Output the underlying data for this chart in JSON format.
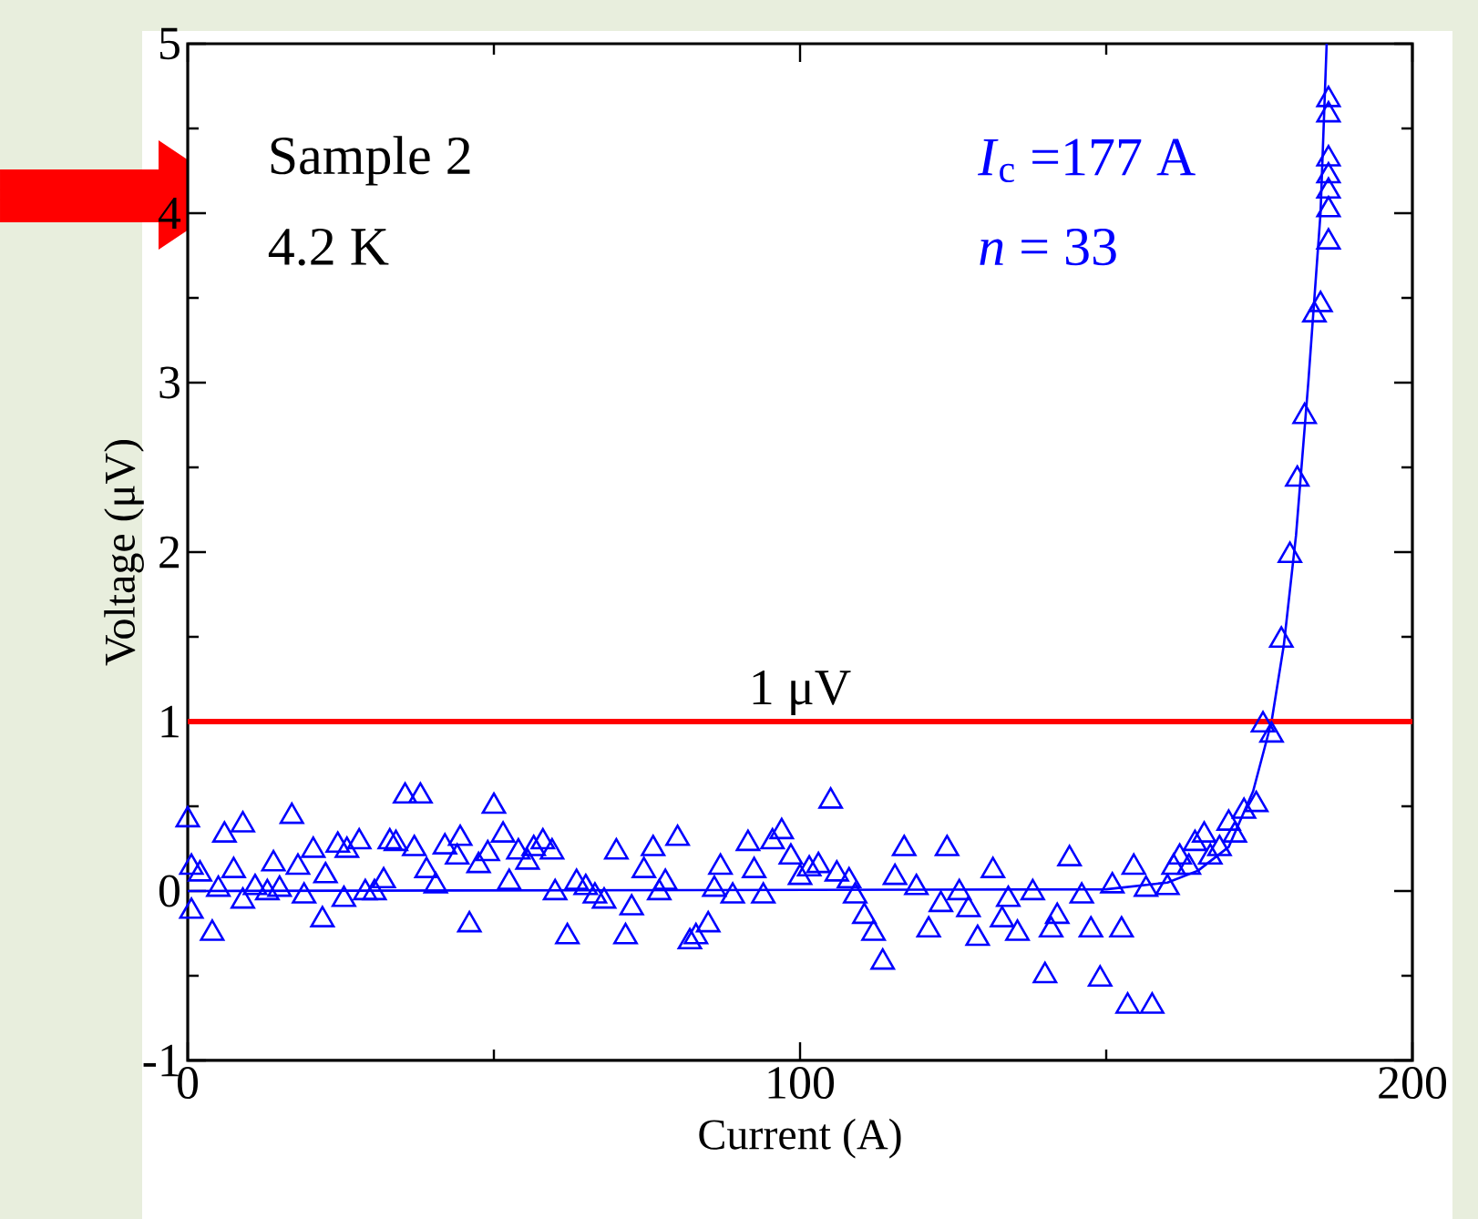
{
  "chart_data": {
    "type": "scatter",
    "xlabel": "Current (A)",
    "ylabel": "Voltage (μV)",
    "xlim": [
      0,
      200
    ],
    "ylim": [
      -1,
      5
    ],
    "xticks": [
      0,
      100,
      200
    ],
    "yticks": [
      -1,
      0,
      1,
      2,
      3,
      4,
      5
    ],
    "grid": false,
    "annotations": [
      "Sample 2",
      "4.2 K",
      "*I*$_{c}$ =177 A",
      "*n* = 33"
    ],
    "ref_lines": [
      {
        "axis": "y",
        "value": 1,
        "label": "1 μV",
        "color": "#ff0000",
        "line_style": "solid"
      }
    ],
    "series": [
      {
        "marker": "triangle",
        "color": "#0000ff",
        "x": [
          0,
          0.6,
          0.6,
          2,
          4,
          5,
          6,
          7.5,
          9,
          9,
          11,
          13,
          14,
          15,
          17,
          18,
          19,
          20.5,
          22,
          22.5,
          24.5,
          26,
          25.5,
          28,
          29,
          30.5,
          32,
          33,
          34,
          35.5,
          38,
          37,
          39,
          40.5,
          42,
          44,
          44.5,
          46,
          47.5,
          50,
          49,
          51.5,
          52.5,
          54,
          55.5,
          56.5,
          58,
          59.5,
          60,
          62,
          63.5,
          65,
          66.5,
          68,
          70,
          71.5,
          72.5,
          74.5,
          76,
          77,
          78,
          80,
          82,
          83,
          85,
          86,
          87,
          89,
          91.5,
          92.5,
          94,
          95.5,
          97,
          98.5,
          100,
          101.5,
          103,
          105,
          106,
          108,
          109,
          110.5,
          112,
          113.5,
          115.5,
          117,
          119,
          121,
          123,
          124,
          126,
          127.5,
          129,
          131.5,
          133,
          134,
          135.5,
          138,
          140,
          141,
          142,
          144,
          146,
          147.5,
          149,
          151,
          152.5,
          153.5,
          157.5,
          154.5,
          156.5,
          160,
          161,
          162,
          163.5,
          164.5,
          166,
          167,
          168.5,
          170,
          171,
          172.5,
          174.5,
          175.6,
          177,
          178.6,
          180,
          181.2,
          182.4,
          184,
          185,
          186.3,
          186.3,
          186.3,
          186.3,
          186.3,
          186.3,
          186.3
        ],
        "values": [
          0.42,
          0.14,
          -0.12,
          0.1,
          -0.25,
          0.01,
          0.33,
          0.12,
          0.39,
          -0.06,
          0.02,
          -0.01,
          0.16,
          0.01,
          0.44,
          0.14,
          -0.03,
          0.24,
          -0.17,
          0.09,
          0.27,
          0.24,
          -0.05,
          0.29,
          -0.01,
          -0.01,
          0.06,
          0.29,
          0.28,
          0.56,
          0.56,
          0.25,
          0.12,
          0.03,
          0.26,
          0.2,
          0.31,
          -0.2,
          0.15,
          0.5,
          0.22,
          0.33,
          0.05,
          0.23,
          0.17,
          0.25,
          0.29,
          0.23,
          -0.01,
          -0.27,
          0.05,
          0.02,
          -0.03,
          -0.06,
          0.23,
          -0.27,
          -0.1,
          0.12,
          0.25,
          -0.01,
          0.05,
          0.31,
          -0.3,
          -0.27,
          -0.2,
          0.01,
          0.14,
          -0.03,
          0.28,
          0.12,
          -0.03,
          0.29,
          0.35,
          0.2,
          0.08,
          0.13,
          0.15,
          0.53,
          0.1,
          0.06,
          -0.03,
          -0.15,
          -0.25,
          -0.42,
          0.08,
          0.25,
          0.02,
          -0.23,
          -0.08,
          0.25,
          -0.01,
          -0.11,
          -0.28,
          0.12,
          -0.17,
          -0.05,
          -0.25,
          -0.01,
          -0.5,
          -0.23,
          -0.15,
          0.19,
          -0.03,
          -0.23,
          -0.52,
          0.03,
          -0.23,
          -0.68,
          -0.68,
          0.14,
          0.01,
          0.02,
          0.14,
          0.2,
          0.14,
          0.28,
          0.33,
          0.2,
          0.25,
          0.4,
          0.33,
          0.47,
          0.51,
          0.98,
          0.92,
          1.48,
          1.98,
          2.43,
          2.8,
          3.4,
          3.46,
          3.83,
          4.02,
          4.13,
          4.22,
          4.32,
          4.58,
          4.67
        ]
      },
      {
        "type": "line",
        "marker": "none",
        "line_style": "solid",
        "color": "#0000ff",
        "x": [
          0,
          150,
          160,
          165,
          170,
          174,
          177,
          179,
          181,
          183,
          185,
          186
        ],
        "values": [
          0,
          0.01,
          0.05,
          0.12,
          0.26,
          0.59,
          1.0,
          1.45,
          2.1,
          3.0,
          4.0,
          5
        ]
      }
    ]
  }
}
